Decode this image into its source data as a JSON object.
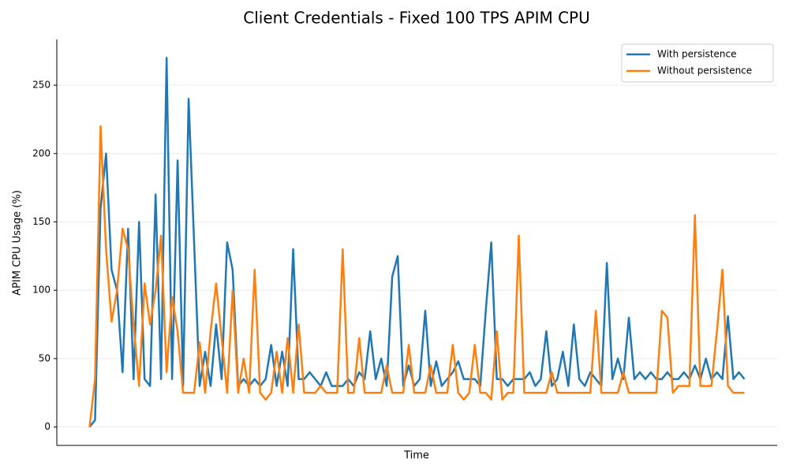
{
  "chart_data": {
    "type": "line",
    "title": "Client Credentials - Fixed 100 TPS APIM CPU",
    "x_label": "Time",
    "y_label": "APIM CPU Usage (%)",
    "x": [
      0,
      1,
      2,
      3,
      4,
      5,
      6,
      7,
      8,
      9,
      10,
      11,
      12,
      13,
      14,
      15,
      16,
      17,
      18,
      19,
      20,
      21,
      22,
      23,
      24,
      25,
      26,
      27,
      28,
      29,
      30,
      31,
      32,
      33,
      34,
      35,
      36,
      37,
      38,
      39,
      40,
      41,
      42,
      43,
      44,
      45,
      46,
      47,
      48,
      49,
      50,
      51,
      52,
      53,
      54,
      55,
      56,
      57,
      58,
      59,
      60,
      61,
      62,
      63,
      64,
      65,
      66,
      67,
      68,
      69,
      70,
      71,
      72,
      73,
      74,
      75,
      76,
      77,
      78,
      79,
      80,
      81,
      82,
      83,
      84,
      85,
      86,
      87,
      88,
      89,
      90,
      91,
      92,
      93,
      94,
      95,
      96,
      97,
      98,
      99,
      100,
      101,
      102,
      103,
      104,
      105,
      106,
      107,
      108,
      109,
      110,
      111,
      112,
      113,
      114,
      115,
      116,
      117,
      118,
      119
    ],
    "xlim": [
      -5.95,
      124.95
    ],
    "series": [
      {
        "name": "With persistence",
        "color": "#1f77b4",
        "values": [
          0,
          5,
          160,
          200,
          115,
          100,
          40,
          145,
          35,
          150,
          35,
          30,
          170,
          35,
          270,
          35,
          195,
          30,
          240,
          135,
          30,
          55,
          30,
          75,
          35,
          135,
          115,
          30,
          35,
          30,
          35,
          30,
          35,
          60,
          30,
          55,
          30,
          130,
          35,
          35,
          40,
          35,
          30,
          40,
          30,
          30,
          30,
          35,
          30,
          40,
          35,
          70,
          35,
          50,
          30,
          110,
          125,
          30,
          45,
          30,
          35,
          85,
          30,
          48,
          30,
          35,
          40,
          48,
          35,
          35,
          35,
          30,
          85,
          135,
          35,
          35,
          30,
          35,
          35,
          35,
          40,
          30,
          35,
          70,
          30,
          35,
          55,
          30,
          75,
          35,
          30,
          40,
          35,
          30,
          120,
          35,
          50,
          35,
          80,
          35,
          40,
          35,
          40,
          35,
          35,
          40,
          35,
          35,
          40,
          35,
          45,
          35,
          50,
          35,
          40,
          35,
          81,
          35,
          40,
          35
        ]
      },
      {
        "name": "Without persistence",
        "color": "#ff7f0e",
        "values": [
          0,
          35,
          220,
          130,
          77,
          100,
          145,
          130,
          75,
          30,
          105,
          75,
          100,
          140,
          40,
          95,
          70,
          25,
          25,
          25,
          62,
          25,
          70,
          105,
          65,
          25,
          100,
          25,
          50,
          25,
          115,
          25,
          20,
          25,
          55,
          25,
          65,
          25,
          75,
          25,
          25,
          25,
          30,
          25,
          25,
          25,
          130,
          25,
          25,
          65,
          25,
          25,
          25,
          25,
          45,
          25,
          25,
          25,
          60,
          25,
          25,
          25,
          45,
          25,
          25,
          25,
          60,
          25,
          20,
          25,
          60,
          25,
          25,
          20,
          70,
          20,
          25,
          25,
          140,
          25,
          25,
          25,
          25,
          25,
          40,
          25,
          25,
          25,
          25,
          25,
          25,
          25,
          85,
          25,
          25,
          25,
          25,
          40,
          25,
          25,
          25,
          25,
          25,
          25,
          85,
          80,
          25,
          30,
          30,
          30,
          155,
          30,
          30,
          30,
          70,
          115,
          30,
          25,
          25,
          25
        ]
      }
    ],
    "ylim": [
      -13.5,
      283.5
    ],
    "yticks": [
      0,
      50,
      100,
      150,
      200,
      250
    ],
    "grid": true,
    "legend": "upper right"
  }
}
